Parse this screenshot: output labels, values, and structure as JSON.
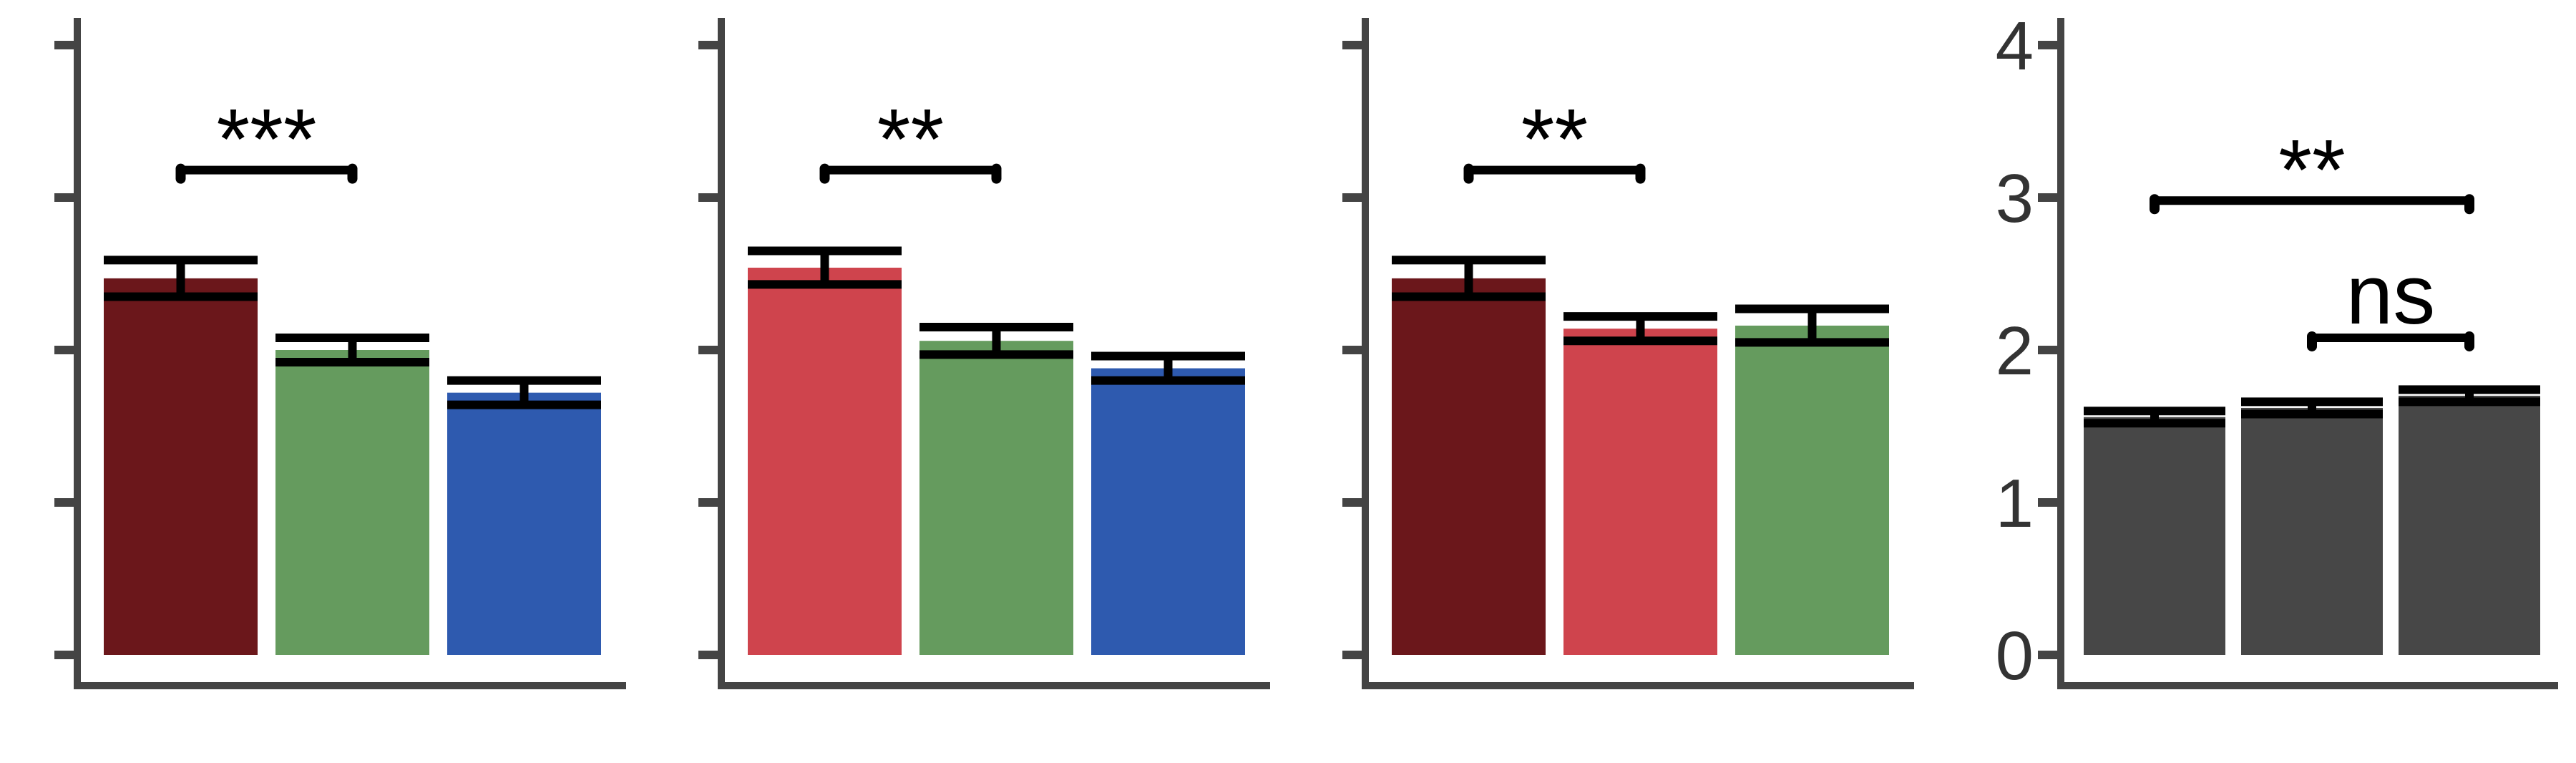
{
  "colors": {
    "dark_red": "#6b171b",
    "red": "#cf444d",
    "green": "#659b5e",
    "blue": "#2e5aaf",
    "gray": "#474747",
    "axis": "#444444",
    "error": "#000000"
  },
  "chart_data": [
    {
      "type": "bar",
      "ylim": [
        0,
        4.1
      ],
      "yticks": [
        0,
        1,
        2,
        3,
        4
      ],
      "show_tick_labels": false,
      "bars": [
        {
          "value": 2.47,
          "error": 0.12,
          "color": "dark_red"
        },
        {
          "value": 2.0,
          "error": 0.08,
          "color": "green"
        },
        {
          "value": 1.72,
          "error": 0.08,
          "color": "blue"
        }
      ],
      "significance": [
        {
          "from": 0,
          "to": 1,
          "label": "***",
          "y": 3.18
        }
      ]
    },
    {
      "type": "bar",
      "ylim": [
        0,
        4.1
      ],
      "yticks": [
        0,
        1,
        2,
        3,
        4
      ],
      "show_tick_labels": false,
      "bars": [
        {
          "value": 2.54,
          "error": 0.11,
          "color": "red"
        },
        {
          "value": 2.06,
          "error": 0.09,
          "color": "green"
        },
        {
          "value": 1.88,
          "error": 0.08,
          "color": "blue"
        }
      ],
      "significance": [
        {
          "from": 0,
          "to": 1,
          "label": "**",
          "y": 3.18
        }
      ]
    },
    {
      "type": "bar",
      "ylim": [
        0,
        4.1
      ],
      "yticks": [
        0,
        1,
        2,
        3,
        4
      ],
      "show_tick_labels": false,
      "bars": [
        {
          "value": 2.47,
          "error": 0.12,
          "color": "dark_red"
        },
        {
          "value": 2.14,
          "error": 0.08,
          "color": "red"
        },
        {
          "value": 2.16,
          "error": 0.11,
          "color": "green"
        }
      ],
      "significance": [
        {
          "from": 0,
          "to": 1,
          "label": "**",
          "y": 3.18
        }
      ]
    },
    {
      "type": "bar",
      "ylim": [
        0,
        4.1
      ],
      "yticks": [
        0,
        1,
        2,
        3,
        4
      ],
      "tick_labels": [
        "0",
        "1",
        "2",
        "3",
        "4"
      ],
      "show_tick_labels": true,
      "bars": [
        {
          "value": 1.56,
          "error": 0.04,
          "color": "gray"
        },
        {
          "value": 1.62,
          "error": 0.04,
          "color": "gray"
        },
        {
          "value": 1.7,
          "error": 0.04,
          "color": "gray"
        }
      ],
      "significance": [
        {
          "from": 0,
          "to": 2,
          "label": "**",
          "y": 2.98
        },
        {
          "from": 1,
          "to": 2,
          "label": "ns",
          "y": 2.08
        }
      ]
    }
  ]
}
